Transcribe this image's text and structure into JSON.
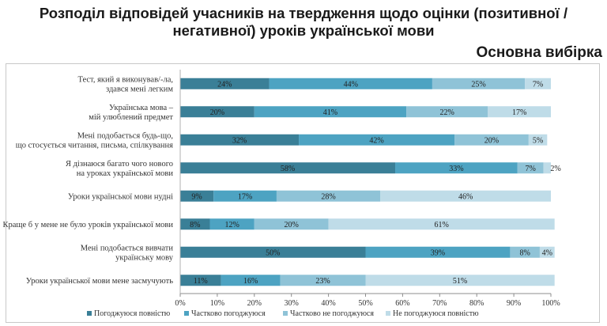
{
  "header": {
    "title_line1": "Розподіл відповідей учасників на твердження щодо оцінки (позитивної /",
    "title_line2": "негативної) уроків української мови",
    "subtitle": "Основна вибірка"
  },
  "chart_data": {
    "type": "bar",
    "orientation": "horizontal",
    "stacked": true,
    "categories": [
      [
        "Тест, який я виконував/-ла,",
        "здався мені легким"
      ],
      [
        "Українська мова –",
        "мій улюблений предмет"
      ],
      [
        "Мені подобається будь-що,",
        "що стосується читання, письма, спілкування"
      ],
      [
        "Я дізнаюся багато чого нового",
        "на уроках української мови"
      ],
      [
        "Уроки української мови нудні"
      ],
      [
        "Краще б у мене не було уроків української мови"
      ],
      [
        "Мені подобається вивчати",
        "українську мову"
      ],
      [
        "Уроки української мови мене засмучують"
      ]
    ],
    "series": [
      {
        "name": "Погоджуюся повністю",
        "color": "#3a7f97",
        "values": [
          24,
          20,
          32,
          58,
          9,
          8,
          50,
          11
        ]
      },
      {
        "name": "Частково погоджуюся",
        "color": "#4da3c2",
        "values": [
          44,
          41,
          42,
          33,
          17,
          12,
          39,
          16
        ]
      },
      {
        "name": "Частково не погоджуюся",
        "color": "#8fc3d7",
        "values": [
          25,
          22,
          20,
          7,
          28,
          20,
          8,
          23
        ]
      },
      {
        "name": "Не погоджуюся повністю",
        "color": "#bfdce8",
        "values": [
          7,
          17,
          5,
          2,
          46,
          61,
          4,
          51
        ]
      }
    ],
    "data_label_suffix": "%",
    "xlim": [
      0,
      100
    ],
    "x_ticks": [
      "0%",
      "10%",
      "20%",
      "30%",
      "40%",
      "50%",
      "60%",
      "70%",
      "80%",
      "90%",
      "100%"
    ],
    "grid": false,
    "legend_position": "bottom"
  }
}
